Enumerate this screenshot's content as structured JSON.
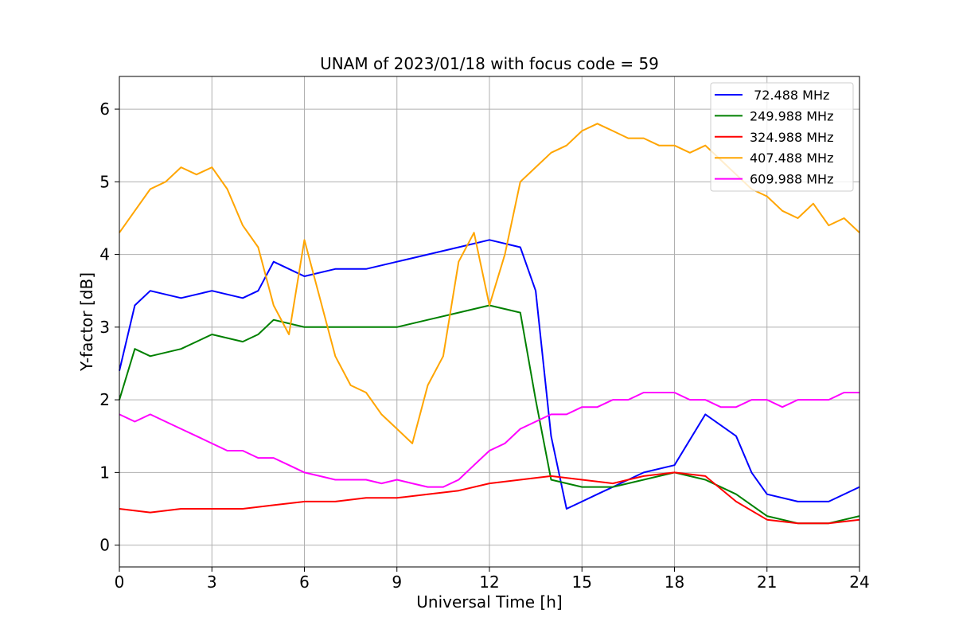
{
  "chart_data": {
    "type": "line",
    "title": "UNAM of 2023/01/18 with focus code = 59",
    "xlabel": "Universal Time [h]",
    "ylabel": "Y-factor [dB]",
    "xlim": [
      0,
      24
    ],
    "ylim": [
      -0.3,
      6.45
    ],
    "xticks": [
      0,
      3,
      6,
      9,
      12,
      15,
      18,
      21,
      24
    ],
    "yticks": [
      0,
      1,
      2,
      3,
      4,
      5,
      6
    ],
    "grid": true,
    "legend_position": "top-right",
    "series": [
      {
        "name": " 72.488 MHz",
        "color": "#0000ff",
        "x": [
          0,
          0.5,
          1,
          2,
          3,
          4,
          4.5,
          5,
          6,
          7,
          8,
          9,
          10,
          11,
          12,
          13,
          13.5,
          14,
          14.5,
          15,
          15.5,
          16,
          17,
          18,
          19,
          20,
          20.5,
          21,
          22,
          23,
          24
        ],
        "y": [
          2.4,
          3.3,
          3.5,
          3.4,
          3.5,
          3.4,
          3.5,
          3.9,
          3.7,
          3.8,
          3.8,
          3.9,
          4.0,
          4.1,
          4.2,
          4.1,
          3.5,
          1.5,
          0.5,
          0.6,
          0.7,
          0.8,
          1.0,
          1.1,
          1.8,
          1.5,
          1.0,
          0.7,
          0.6,
          0.6,
          0.8
        ]
      },
      {
        "name": "249.988 MHz",
        "color": "#008000",
        "x": [
          0,
          0.5,
          1,
          2,
          3,
          4,
          4.5,
          5,
          6,
          7,
          8,
          9,
          10,
          11,
          12,
          13,
          13.5,
          14,
          15,
          16,
          17,
          18,
          19,
          20,
          21,
          22,
          23,
          24
        ],
        "y": [
          2.0,
          2.7,
          2.6,
          2.7,
          2.9,
          2.8,
          2.9,
          3.1,
          3.0,
          3.0,
          3.0,
          3.0,
          3.1,
          3.2,
          3.3,
          3.2,
          2.0,
          0.9,
          0.8,
          0.8,
          0.9,
          1.0,
          0.9,
          0.7,
          0.4,
          0.3,
          0.3,
          0.4
        ]
      },
      {
        "name": "324.988 MHz",
        "color": "#ff0000",
        "x": [
          0,
          1,
          2,
          3,
          4,
          5,
          6,
          7,
          8,
          9,
          10,
          11,
          12,
          13,
          14,
          15,
          16,
          17,
          18,
          19,
          20,
          21,
          22,
          23,
          24
        ],
        "y": [
          0.5,
          0.45,
          0.5,
          0.5,
          0.5,
          0.55,
          0.6,
          0.6,
          0.65,
          0.65,
          0.7,
          0.75,
          0.85,
          0.9,
          0.95,
          0.9,
          0.85,
          0.95,
          1.0,
          0.95,
          0.6,
          0.35,
          0.3,
          0.3,
          0.35
        ]
      },
      {
        "name": "407.488 MHz",
        "color": "#ffa500",
        "x": [
          0,
          0.5,
          1,
          1.5,
          2,
          2.5,
          3,
          3.5,
          4,
          4.5,
          5,
          5.5,
          6,
          6.5,
          7,
          7.5,
          8,
          8.5,
          9,
          9.5,
          10,
          10.5,
          11,
          11.5,
          12,
          12.5,
          13,
          13.5,
          14,
          14.5,
          15,
          15.5,
          16,
          16.5,
          17,
          17.5,
          18,
          18.5,
          19,
          19.5,
          20,
          20.5,
          21,
          21.5,
          22,
          22.5,
          23,
          23.5,
          24
        ],
        "y": [
          4.3,
          4.6,
          4.9,
          5.0,
          5.2,
          5.1,
          5.2,
          4.9,
          4.4,
          4.1,
          3.3,
          2.9,
          4.2,
          3.4,
          2.6,
          2.2,
          2.1,
          1.8,
          1.6,
          1.4,
          2.2,
          2.6,
          3.9,
          4.3,
          3.3,
          4.0,
          5.0,
          5.2,
          5.4,
          5.5,
          5.7,
          5.8,
          5.7,
          5.6,
          5.6,
          5.5,
          5.5,
          5.4,
          5.5,
          5.3,
          5.1,
          4.9,
          4.8,
          4.6,
          4.5,
          4.7,
          4.4,
          4.5,
          4.3
        ]
      },
      {
        "name": "609.988 MHz",
        "color": "#ff00ff",
        "x": [
          0,
          0.5,
          1,
          1.5,
          2,
          2.5,
          3,
          3.5,
          4,
          4.5,
          5,
          5.5,
          6,
          6.5,
          7,
          7.5,
          8,
          8.5,
          9,
          9.5,
          10,
          10.5,
          11,
          11.5,
          12,
          12.5,
          13,
          13.5,
          14,
          14.5,
          15,
          15.5,
          16,
          16.5,
          17,
          17.5,
          18,
          18.5,
          19,
          19.5,
          20,
          20.5,
          21,
          21.5,
          22,
          22.5,
          23,
          23.5,
          24
        ],
        "y": [
          1.8,
          1.7,
          1.8,
          1.7,
          1.6,
          1.5,
          1.4,
          1.3,
          1.3,
          1.2,
          1.2,
          1.1,
          1.0,
          0.95,
          0.9,
          0.9,
          0.9,
          0.85,
          0.9,
          0.85,
          0.8,
          0.8,
          0.9,
          1.1,
          1.3,
          1.4,
          1.6,
          1.7,
          1.8,
          1.8,
          1.9,
          1.9,
          2.0,
          2.0,
          2.1,
          2.1,
          2.1,
          2.0,
          2.0,
          1.9,
          1.9,
          2.0,
          2.0,
          1.9,
          2.0,
          2.0,
          2.0,
          2.1,
          2.1
        ]
      }
    ]
  }
}
